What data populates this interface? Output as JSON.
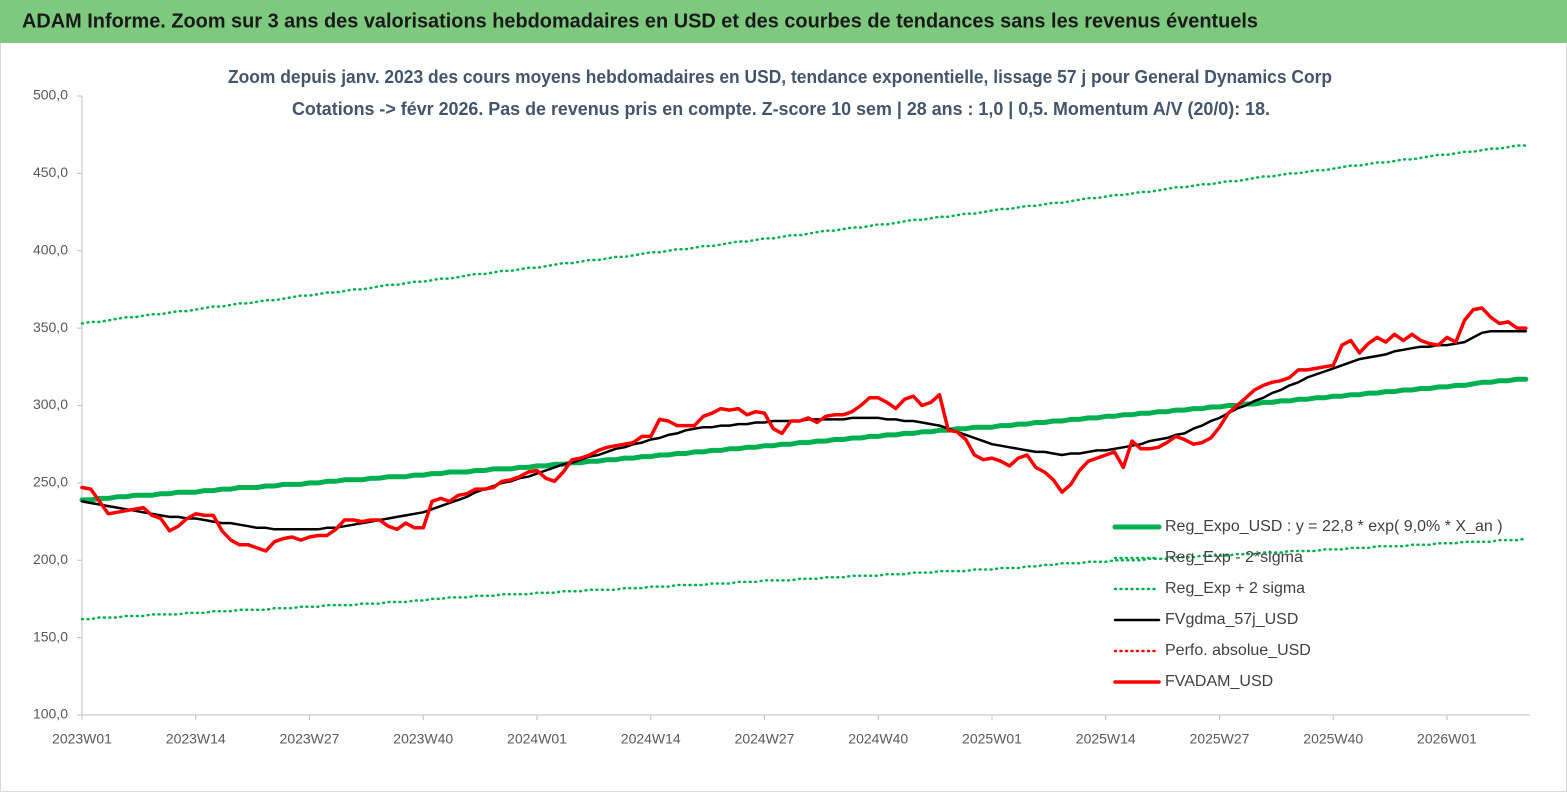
{
  "header": {
    "title": "ADAM Informe. Zoom sur 3 ans des valorisations hebdomadaires en USD et des courbes de tendances sans les revenus éventuels"
  },
  "chart_data": {
    "type": "line",
    "title": "Zoom depuis janv. 2023 des cours moyens hebdomadaires en USD, tendance exponentielle, lissage 57 j pour General Dynamics Corp",
    "subtitle": "Cotations -> févr 2026.  Pas de revenus pris en compte. Z-score 10 sem | 28 ans : 1,0 | 0,5. Momentum A/V (20/0): 18.",
    "categories": [
      "2023W01",
      null,
      null,
      null,
      null,
      null,
      null,
      null,
      null,
      null,
      null,
      null,
      null,
      "2023W14",
      null,
      null,
      null,
      null,
      null,
      null,
      null,
      null,
      null,
      null,
      null,
      null,
      "2023W27",
      null,
      null,
      null,
      null,
      null,
      null,
      null,
      null,
      null,
      null,
      null,
      null,
      "2023W40",
      null,
      null,
      null,
      null,
      null,
      null,
      null,
      null,
      null,
      null,
      null,
      null,
      "2024W01",
      null,
      null,
      null,
      null,
      null,
      null,
      null,
      null,
      null,
      null,
      null,
      null,
      "2024W14",
      null,
      null,
      null,
      null,
      null,
      null,
      null,
      null,
      null,
      null,
      null,
      null,
      "2024W27",
      null,
      null,
      null,
      null,
      null,
      null,
      null,
      null,
      null,
      null,
      null,
      null,
      "2024W40",
      null,
      null,
      null,
      null,
      null,
      null,
      null,
      null,
      null,
      null,
      null,
      null,
      "2025W01",
      null,
      null,
      null,
      null,
      null,
      null,
      null,
      null,
      null,
      null,
      null,
      null,
      "2025W14",
      null,
      null,
      null,
      null,
      null,
      null,
      null,
      null,
      null,
      null,
      null,
      null,
      "2025W27",
      null,
      null,
      null,
      null,
      null,
      null,
      null,
      null,
      null,
      null,
      null,
      null,
      "2025W40",
      null,
      null,
      null,
      null,
      null,
      null,
      null,
      null,
      null,
      null,
      null,
      null,
      "2026W01",
      null,
      null,
      null,
      null,
      null,
      null,
      null,
      null,
      null
    ],
    "series": [
      {
        "name": "Reg_Expo_USD : y = 22,8 * exp( 9,0% * X_an )",
        "color": "#00b050",
        "style": "thick",
        "values": [
          239,
          239,
          240,
          240,
          241,
          241,
          242,
          242,
          242,
          243,
          243,
          244,
          244,
          244,
          245,
          245,
          246,
          246,
          247,
          247,
          247,
          248,
          248,
          249,
          249,
          249,
          250,
          250,
          251,
          251,
          252,
          252,
          252,
          253,
          253,
          254,
          254,
          254,
          255,
          255,
          256,
          256,
          257,
          257,
          257,
          258,
          258,
          259,
          259,
          259,
          260,
          260,
          261,
          261,
          262,
          262,
          263,
          263,
          264,
          264,
          265,
          265,
          266,
          266,
          267,
          267,
          268,
          268,
          269,
          269,
          270,
          270,
          271,
          271,
          272,
          272,
          273,
          273,
          274,
          274,
          275,
          275,
          276,
          276,
          277,
          277,
          278,
          278,
          279,
          279,
          280,
          280,
          281,
          281,
          282,
          282,
          283,
          283,
          284,
          284,
          285,
          285,
          286,
          286,
          286,
          287,
          287,
          288,
          288,
          289,
          289,
          290,
          290,
          291,
          291,
          292,
          292,
          293,
          293,
          294,
          294,
          295,
          295,
          296,
          296,
          297,
          297,
          298,
          298,
          299,
          299,
          300,
          300,
          301,
          301,
          302,
          302,
          303,
          303,
          304,
          304,
          305,
          305,
          306,
          306,
          307,
          307,
          308,
          308,
          309,
          309,
          310,
          310,
          311,
          311,
          312,
          312,
          313,
          313,
          314,
          315,
          315,
          316,
          316,
          317,
          317
        ]
      },
      {
        "name": "Reg_Exp - 2*sigma",
        "color": "#00b050",
        "style": "dotted",
        "values": [
          162,
          162,
          163,
          163,
          163,
          164,
          164,
          164,
          165,
          165,
          165,
          165,
          166,
          166,
          166,
          167,
          167,
          167,
          168,
          168,
          168,
          168,
          169,
          169,
          169,
          170,
          170,
          170,
          171,
          171,
          171,
          171,
          172,
          172,
          172,
          173,
          173,
          173,
          174,
          174,
          175,
          175,
          176,
          176,
          176,
          177,
          177,
          177,
          178,
          178,
          178,
          178,
          179,
          179,
          179,
          180,
          180,
          180,
          181,
          181,
          181,
          181,
          182,
          182,
          182,
          183,
          183,
          183,
          184,
          184,
          184,
          184,
          185,
          185,
          185,
          186,
          186,
          186,
          187,
          187,
          187,
          187,
          188,
          188,
          188,
          189,
          189,
          189,
          190,
          190,
          190,
          190,
          191,
          191,
          191,
          192,
          192,
          192,
          193,
          193,
          193,
          193,
          194,
          194,
          194,
          195,
          195,
          195,
          196,
          196,
          197,
          197,
          198,
          198,
          198,
          199,
          199,
          199,
          200,
          200,
          200,
          200,
          201,
          201,
          201,
          202,
          202,
          202,
          203,
          203,
          203,
          203,
          204,
          204,
          204,
          205,
          205,
          205,
          206,
          206,
          206,
          206,
          207,
          207,
          207,
          208,
          208,
          208,
          209,
          209,
          209,
          209,
          210,
          210,
          210,
          211,
          211,
          211,
          212,
          212,
          212,
          212,
          213,
          213,
          213,
          214
        ]
      },
      {
        "name": "Reg_Exp + 2 sigma",
        "color": "#00b050",
        "style": "dotted",
        "values": [
          353,
          354,
          354,
          355,
          356,
          357,
          357,
          358,
          359,
          359,
          360,
          361,
          361,
          362,
          363,
          364,
          364,
          365,
          366,
          366,
          367,
          368,
          368,
          369,
          370,
          371,
          371,
          372,
          373,
          373,
          374,
          375,
          375,
          376,
          377,
          378,
          378,
          379,
          380,
          380,
          381,
          382,
          382,
          383,
          384,
          385,
          385,
          386,
          387,
          387,
          388,
          389,
          389,
          390,
          391,
          392,
          392,
          393,
          394,
          394,
          395,
          396,
          396,
          397,
          398,
          399,
          399,
          400,
          401,
          401,
          402,
          403,
          403,
          404,
          405,
          406,
          406,
          407,
          408,
          408,
          409,
          410,
          410,
          411,
          412,
          413,
          413,
          414,
          415,
          415,
          416,
          417,
          417,
          418,
          419,
          420,
          420,
          421,
          422,
          422,
          423,
          424,
          424,
          425,
          426,
          427,
          427,
          428,
          429,
          429,
          430,
          431,
          431,
          432,
          433,
          434,
          434,
          435,
          436,
          436,
          437,
          438,
          438,
          439,
          440,
          441,
          441,
          442,
          443,
          443,
          444,
          445,
          445,
          446,
          447,
          448,
          448,
          449,
          450,
          450,
          451,
          452,
          452,
          453,
          454,
          455,
          455,
          456,
          457,
          457,
          458,
          459,
          459,
          460,
          461,
          462,
          462,
          463,
          464,
          464,
          465,
          466,
          466,
          467,
          468,
          468
        ]
      },
      {
        "name": "FVgdma_57j_USD",
        "color": "#000000",
        "style": "solid",
        "values": [
          238,
          237,
          236,
          235,
          234,
          233,
          232,
          231,
          230,
          229,
          228,
          228,
          227,
          227,
          226,
          225,
          224,
          224,
          223,
          222,
          221,
          221,
          220,
          220,
          220,
          220,
          220,
          220,
          221,
          221,
          222,
          223,
          224,
          225,
          226,
          227,
          228,
          229,
          230,
          231,
          233,
          235,
          237,
          239,
          241,
          244,
          246,
          248,
          250,
          251,
          253,
          254,
          256,
          258,
          260,
          262,
          263,
          265,
          267,
          268,
          270,
          272,
          273,
          275,
          276,
          278,
          279,
          281,
          282,
          284,
          285,
          286,
          286,
          287,
          287,
          288,
          288,
          289,
          289,
          290,
          290,
          290,
          290,
          291,
          291,
          291,
          291,
          291,
          292,
          292,
          292,
          292,
          291,
          291,
          290,
          290,
          289,
          288,
          287,
          285,
          283,
          281,
          279,
          277,
          275,
          274,
          273,
          272,
          271,
          270,
          270,
          269,
          268,
          269,
          269,
          270,
          271,
          271,
          272,
          273,
          274,
          275,
          277,
          278,
          279,
          281,
          282,
          285,
          287,
          290,
          292,
          295,
          298,
          300,
          303,
          305,
          308,
          310,
          313,
          315,
          318,
          320,
          322,
          324,
          326,
          328,
          330,
          331,
          332,
          333,
          335,
          336,
          337,
          338,
          338,
          339,
          339,
          340,
          341,
          344,
          347,
          348,
          348,
          348,
          348,
          348
        ]
      },
      {
        "name": "Perfo. absolue_USD",
        "color": "#ff0000",
        "style": "dotted",
        "values": [
          247,
          246,
          238,
          230,
          231,
          232,
          233,
          234,
          229,
          227,
          219,
          222,
          227,
          230,
          229,
          229,
          219,
          213,
          210,
          210,
          208,
          206,
          212,
          214,
          215,
          213,
          215,
          216,
          216,
          220,
          226,
          226,
          225,
          226,
          226,
          222,
          220,
          224,
          221,
          221,
          238,
          240,
          238,
          242,
          243,
          246,
          246,
          247,
          251,
          252,
          254,
          257,
          258,
          253,
          251,
          257,
          265,
          266,
          268,
          271,
          273,
          274,
          275,
          276,
          280,
          280,
          291,
          290,
          287,
          287,
          287,
          293,
          295,
          298,
          297,
          298,
          294,
          296,
          295,
          285,
          282,
          290,
          290,
          292,
          289,
          293,
          294,
          294,
          296,
          300,
          305,
          305,
          302,
          298,
          304,
          306,
          300,
          302,
          307,
          284,
          283,
          278,
          268,
          265,
          266,
          264,
          261,
          266,
          268,
          260,
          257,
          252,
          244,
          249,
          258,
          264,
          266,
          268,
          270,
          260,
          277,
          272,
          272,
          273,
          276,
          280,
          278,
          275,
          276,
          279,
          286,
          295,
          300,
          305,
          310,
          313,
          315,
          316,
          318,
          323,
          323,
          324,
          325,
          326,
          339,
          342,
          334,
          340,
          344,
          341,
          346,
          342,
          346,
          342,
          340,
          339,
          344,
          341,
          355,
          362,
          363,
          357,
          353,
          354,
          350,
          350
        ]
      },
      {
        "name": "FVADAM_USD",
        "color": "#ff0000",
        "style": "bold",
        "values": [
          247,
          246,
          238,
          230,
          231,
          232,
          233,
          234,
          229,
          227,
          219,
          222,
          227,
          230,
          229,
          229,
          219,
          213,
          210,
          210,
          208,
          206,
          212,
          214,
          215,
          213,
          215,
          216,
          216,
          220,
          226,
          226,
          225,
          226,
          226,
          222,
          220,
          224,
          221,
          221,
          238,
          240,
          238,
          242,
          243,
          246,
          246,
          247,
          251,
          252,
          254,
          257,
          258,
          253,
          251,
          257,
          265,
          266,
          268,
          271,
          273,
          274,
          275,
          276,
          280,
          280,
          291,
          290,
          287,
          287,
          287,
          293,
          295,
          298,
          297,
          298,
          294,
          296,
          295,
          285,
          282,
          290,
          290,
          292,
          289,
          293,
          294,
          294,
          296,
          300,
          305,
          305,
          302,
          298,
          304,
          306,
          300,
          302,
          307,
          284,
          283,
          278,
          268,
          265,
          266,
          264,
          261,
          266,
          268,
          260,
          257,
          252,
          244,
          249,
          258,
          264,
          266,
          268,
          270,
          260,
          277,
          272,
          272,
          273,
          276,
          280,
          278,
          275,
          276,
          279,
          286,
          295,
          300,
          305,
          310,
          313,
          315,
          316,
          318,
          323,
          323,
          324,
          325,
          326,
          339,
          342,
          334,
          340,
          344,
          341,
          346,
          342,
          346,
          342,
          340,
          339,
          344,
          341,
          355,
          362,
          363,
          357,
          353,
          354,
          350,
          350
        ]
      }
    ],
    "ylim": [
      100,
      500
    ],
    "yticks": [
      {
        "value": 100,
        "label": "100,0"
      },
      {
        "value": 150,
        "label": "150,0"
      },
      {
        "value": 200,
        "label": "200,0"
      },
      {
        "value": 250,
        "label": "250,0"
      },
      {
        "value": 300,
        "label": "300,0"
      },
      {
        "value": 350,
        "label": "350,0"
      },
      {
        "value": 400,
        "label": "400,0"
      },
      {
        "value": 450,
        "label": "450,0"
      },
      {
        "value": 500,
        "label": "500,0"
      }
    ],
    "grid": false,
    "legend": "lower right"
  }
}
